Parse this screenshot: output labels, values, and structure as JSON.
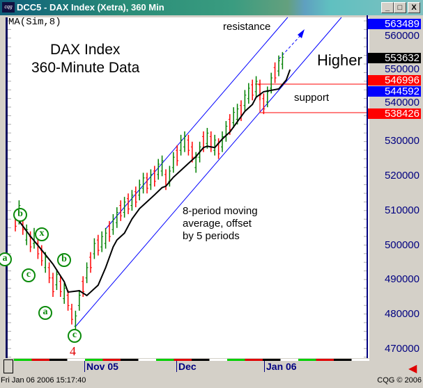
{
  "window": {
    "title": "DCC5 - DAX Index (Xetra), 360 Min",
    "logo_text": "cqg",
    "minimize": "_",
    "maximize": "□",
    "close": "X"
  },
  "study_label": "MA(Sim,8)",
  "annotations": {
    "title_line1": "DAX Index",
    "title_line2": "360-Minute Data",
    "resistance": "resistance",
    "higher": "Higher",
    "support": "support",
    "ma_note": [
      "8-period moving",
      "average, offset",
      "by 5 periods"
    ],
    "wave_4": "4"
  },
  "wave_labels": [
    "b",
    "x",
    "a",
    "b",
    "c",
    "a",
    "c"
  ],
  "price_axis": {
    "ticks": [
      "560000",
      "550000",
      "540000",
      "530000",
      "520000",
      "510000",
      "500000",
      "490000",
      "480000",
      "470000"
    ],
    "markers": [
      {
        "value": "563489",
        "bg": "#0000ff"
      },
      {
        "value": "553632",
        "bg": "#000000"
      },
      {
        "value": "546996",
        "bg": "#ff0000"
      },
      {
        "value": "544592",
        "bg": "#0000ff"
      },
      {
        "value": "538426",
        "bg": "#ff0000"
      }
    ]
  },
  "time_axis": {
    "labels": [
      "Nov 05",
      "Dec",
      "Jan 06"
    ]
  },
  "status": {
    "datetime": "Fri Jan 06 2006 15:17:40",
    "copyright": "CQG © 2006"
  },
  "colors": {
    "up": "#008000",
    "down": "#ff0000",
    "ma": "#000000",
    "channel": "#0000ff",
    "support_box": "#ff0000"
  },
  "chart_data": {
    "type": "bar",
    "ylim": [
      467000,
      566000
    ],
    "bars": [
      [
        504000,
        510000,
        "d"
      ],
      [
        506000,
        513000,
        "u"
      ],
      [
        503000,
        509000,
        "d"
      ],
      [
        500000,
        506000,
        "u"
      ],
      [
        498000,
        504000,
        "d"
      ],
      [
        499000,
        505000,
        "u"
      ],
      [
        496000,
        502000,
        "d"
      ],
      [
        494000,
        500000,
        "d"
      ],
      [
        492000,
        498000,
        "u"
      ],
      [
        489000,
        495000,
        "d"
      ],
      [
        485000,
        492000,
        "d"
      ],
      [
        487000,
        493000,
        "u"
      ],
      [
        485000,
        491000,
        "d"
      ],
      [
        483000,
        489000,
        "u"
      ],
      [
        481000,
        487000,
        "d"
      ],
      [
        477000,
        483000,
        "d"
      ],
      [
        475000,
        481000,
        "u"
      ],
      [
        481000,
        487000,
        "u"
      ],
      [
        485000,
        491000,
        "d"
      ],
      [
        489000,
        495000,
        "u"
      ],
      [
        492000,
        498000,
        "d"
      ],
      [
        496000,
        502000,
        "u"
      ],
      [
        497000,
        503000,
        "d"
      ],
      [
        498000,
        504000,
        "u"
      ],
      [
        499000,
        505000,
        "u"
      ],
      [
        501000,
        507000,
        "d"
      ],
      [
        503000,
        509000,
        "u"
      ],
      [
        505000,
        511000,
        "u"
      ],
      [
        507000,
        513000,
        "d"
      ],
      [
        508000,
        514000,
        "u"
      ],
      [
        509000,
        515000,
        "d"
      ],
      [
        510000,
        516000,
        "u"
      ],
      [
        511000,
        517000,
        "d"
      ],
      [
        513000,
        519000,
        "u"
      ],
      [
        515000,
        521000,
        "u"
      ],
      [
        515000,
        521000,
        "d"
      ],
      [
        516000,
        522000,
        "u"
      ],
      [
        517000,
        523000,
        "d"
      ],
      [
        519000,
        525000,
        "u"
      ],
      [
        520000,
        526000,
        "u"
      ],
      [
        516000,
        522000,
        "d"
      ],
      [
        517000,
        523000,
        "u"
      ],
      [
        521000,
        527000,
        "u"
      ],
      [
        523000,
        529000,
        "d"
      ],
      [
        526000,
        532000,
        "u"
      ],
      [
        527000,
        533000,
        "u"
      ],
      [
        526000,
        532000,
        "d"
      ],
      [
        524000,
        530000,
        "d"
      ],
      [
        521000,
        527000,
        "u"
      ],
      [
        524000,
        530000,
        "u"
      ],
      [
        527000,
        533000,
        "d"
      ],
      [
        528000,
        534000,
        "u"
      ],
      [
        527000,
        533000,
        "d"
      ],
      [
        526000,
        532000,
        "u"
      ],
      [
        525000,
        531000,
        "d"
      ],
      [
        527000,
        533000,
        "u"
      ],
      [
        530000,
        536000,
        "u"
      ],
      [
        532000,
        538000,
        "d"
      ],
      [
        534000,
        540000,
        "u"
      ],
      [
        535000,
        541000,
        "u"
      ],
      [
        536000,
        542000,
        "d"
      ],
      [
        539000,
        545000,
        "u"
      ],
      [
        541000,
        547000,
        "u"
      ],
      [
        542000,
        548000,
        "d"
      ],
      [
        543000,
        549000,
        "u"
      ],
      [
        542000,
        548000,
        "d"
      ],
      [
        538000,
        544000,
        "d"
      ],
      [
        540000,
        546000,
        "u"
      ],
      [
        544000,
        550000,
        "u"
      ],
      [
        547000,
        553000,
        "d"
      ],
      [
        549000,
        555000,
        "u"
      ],
      [
        551000,
        556000,
        "u"
      ]
    ],
    "ma_points": [
      [
        1,
        507000
      ],
      [
        4,
        502600
      ],
      [
        7,
        498600
      ],
      [
        10,
        494500
      ],
      [
        13,
        489400
      ],
      [
        14,
        486400
      ],
      [
        17,
        486800
      ],
      [
        19,
        485400
      ],
      [
        22,
        488400
      ],
      [
        24,
        493500
      ],
      [
        26,
        499500
      ],
      [
        27,
        501500
      ],
      [
        29,
        503500
      ],
      [
        31,
        507600
      ],
      [
        33,
        510600
      ],
      [
        35,
        512600
      ],
      [
        37,
        514600
      ],
      [
        39,
        516700
      ],
      [
        40,
        517100
      ],
      [
        42,
        519700
      ],
      [
        44,
        521700
      ],
      [
        46,
        523700
      ],
      [
        48,
        525700
      ],
      [
        50,
        528300
      ],
      [
        51,
        528700
      ],
      [
        53,
        528300
      ],
      [
        55,
        530800
      ],
      [
        57,
        532800
      ],
      [
        59,
        535800
      ],
      [
        61,
        538800
      ],
      [
        63,
        540800
      ],
      [
        64,
        542900
      ],
      [
        66,
        544500
      ],
      [
        68,
        544900
      ],
      [
        70,
        545300
      ],
      [
        72,
        547900
      ],
      [
        73,
        550900
      ]
    ]
  }
}
